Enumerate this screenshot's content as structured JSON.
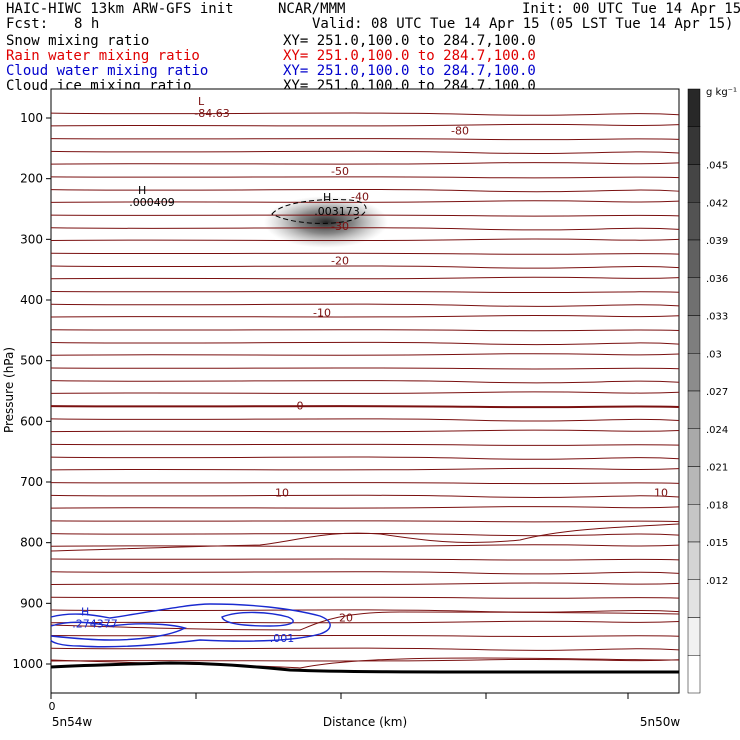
{
  "header": {
    "model": "HAIC-HIWC 13km ARW-GFS init",
    "org": "NCAR/MMM",
    "init": "Init: 00 UTC Tue 14 Apr 15",
    "fcst_label": "Fcst:",
    "fcst_value": "8 h",
    "valid": "Valid: 08 UTC Tue 14 Apr 15 (05 LST Tue 14 Apr 15)"
  },
  "fields": [
    {
      "label": "Snow mixing ratio",
      "xy": "XY= 251.0,100.0 to 284.7,100.0",
      "color": "#000000"
    },
    {
      "label": "Rain water mixing ratio",
      "xy": "XY= 251.0,100.0 to 284.7,100.0",
      "color": "#e00000"
    },
    {
      "label": "Cloud water mixing ratio",
      "xy": "XY= 251.0,100.0 to 284.7,100.0",
      "color": "#0000cc"
    },
    {
      "label": "Cloud ice mixing ratio",
      "xy": "XY= 251.0,100.0 to 284.7,100.0",
      "color": "#000000"
    }
  ],
  "chart_data": {
    "type": "line",
    "xlabel": "Distance (km)",
    "ylabel": "Pressure (hPa)",
    "x_left_tick": "0",
    "x_left_label": "5n54w",
    "x_right_label": "5n50w",
    "y_ticks": [
      100,
      200,
      300,
      400,
      500,
      600,
      700,
      800,
      900,
      1000
    ],
    "ylim": [
      1050,
      50
    ],
    "temp_contours": [
      {
        "label": "-80",
        "p": 121
      },
      {
        "label": "-50",
        "p": 187
      },
      {
        "label": "-40",
        "p": 229
      },
      {
        "label": "-30",
        "p": 278
      },
      {
        "label": "-20",
        "p": 335
      },
      {
        "label": "-10",
        "p": 421
      },
      {
        "label": "0",
        "p": 574
      },
      {
        "label": "10",
        "p": 717
      },
      {
        "label": "20",
        "p": 923
      }
    ],
    "extrema": [
      {
        "kind": "L",
        "value": "-84.63",
        "p": 98
      },
      {
        "kind": "H",
        "value": ".000409",
        "p": 245
      },
      {
        "kind": "H",
        "value": ".003173",
        "p": 250
      },
      {
        "kind": "H",
        "value": ".274377",
        "p": 940
      }
    ],
    "cloud_water_label": ".001",
    "colorbar": {
      "unit": "g kg⁻¹",
      "ticks": [
        ".045",
        ".042",
        ".039",
        ".036",
        ".033",
        ".03",
        ".027",
        ".024",
        ".021",
        ".018",
        ".015",
        ".012"
      ]
    },
    "colors": {
      "temp": "#7a1010",
      "cloud_water": "#1a2ad0",
      "ice_fill": "#333333",
      "terrain": "#000000"
    }
  }
}
